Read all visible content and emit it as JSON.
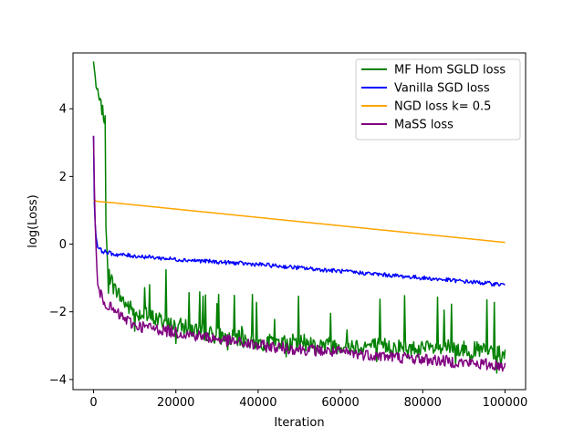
{
  "chart_data": {
    "type": "line",
    "title": "",
    "xlabel": "Iteration",
    "ylabel": "log(Loss)",
    "xlim": [
      -5000,
      105000
    ],
    "ylim": [
      -4.3,
      5.65
    ],
    "xticks": [
      0,
      20000,
      40000,
      60000,
      80000,
      100000
    ],
    "yticks": [
      -4,
      -2,
      0,
      2,
      4
    ],
    "grid": false,
    "legend_position": "upper-right",
    "series": [
      {
        "name": "MF Hom SGLD loss",
        "color": "#008000",
        "noise": "high",
        "points": [
          [
            0,
            5.4
          ],
          [
            500,
            4.8
          ],
          [
            1000,
            4.4
          ],
          [
            2000,
            4.0
          ],
          [
            2800,
            3.6
          ],
          [
            3000,
            0.5
          ],
          [
            3500,
            -0.8
          ],
          [
            5000,
            -1.3
          ],
          [
            8000,
            -1.8
          ],
          [
            10000,
            -2.0
          ],
          [
            20000,
            -2.4
          ],
          [
            30000,
            -2.7
          ],
          [
            40000,
            -2.9
          ],
          [
            50000,
            -2.9
          ],
          [
            60000,
            -3.0
          ],
          [
            70000,
            -3.0
          ],
          [
            80000,
            -3.1
          ],
          [
            90000,
            -3.1
          ],
          [
            100000,
            -3.2
          ]
        ]
      },
      {
        "name": "Vanilla SGD loss",
        "color": "#0000ff",
        "noise": "low",
        "points": [
          [
            0,
            3.2
          ],
          [
            200,
            1.2
          ],
          [
            500,
            0.3
          ],
          [
            1000,
            -0.1
          ],
          [
            2000,
            -0.2
          ],
          [
            5000,
            -0.3
          ],
          [
            10000,
            -0.35
          ],
          [
            20000,
            -0.45
          ],
          [
            40000,
            -0.6
          ],
          [
            60000,
            -0.8
          ],
          [
            80000,
            -1.0
          ],
          [
            100000,
            -1.2
          ]
        ]
      },
      {
        "name": "NGD loss k= 0.5",
        "color": "#ffa500",
        "noise": "none",
        "points": [
          [
            0,
            1.3
          ],
          [
            1000,
            1.26
          ],
          [
            5000,
            1.22
          ],
          [
            100000,
            0.05
          ]
        ]
      },
      {
        "name": "MaSS loss",
        "color": "#800080",
        "noise": "medium",
        "points": [
          [
            0,
            3.2
          ],
          [
            300,
            1.0
          ],
          [
            700,
            -0.5
          ],
          [
            1000,
            -1.2
          ],
          [
            2000,
            -1.6
          ],
          [
            5000,
            -2.0
          ],
          [
            10000,
            -2.4
          ],
          [
            20000,
            -2.6
          ],
          [
            40000,
            -3.0
          ],
          [
            60000,
            -3.2
          ],
          [
            80000,
            -3.4
          ],
          [
            100000,
            -3.6
          ]
        ]
      }
    ]
  }
}
